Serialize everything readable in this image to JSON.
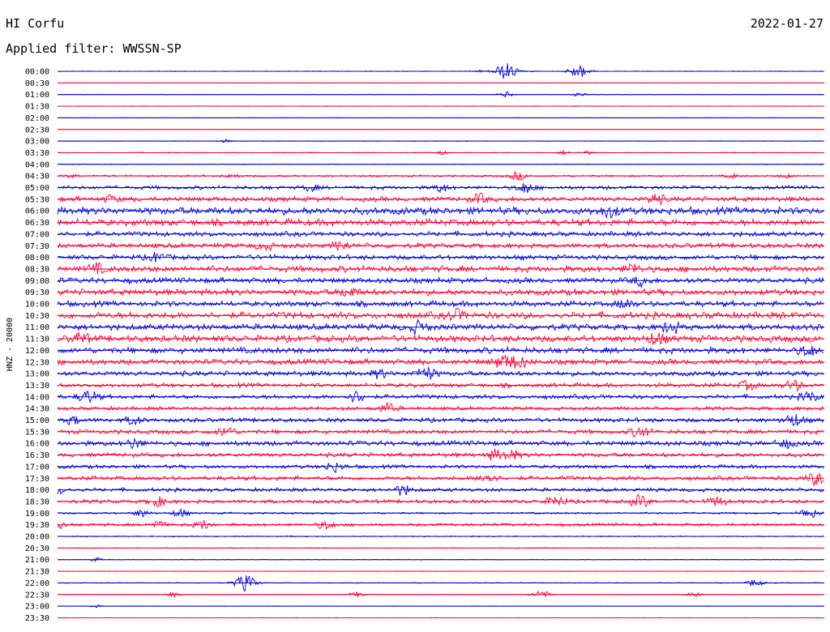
{
  "header": {
    "station": "HI Corfu",
    "date": "2022-01-27",
    "filter": "Applied filter: WWSSN-SP",
    "channel": "HNZ - 20000"
  },
  "colors": {
    "trace_a": "#0000dd",
    "trace_b": "#ff0033",
    "text": "#000000",
    "background": "#ffffff"
  },
  "chart_data": {
    "type": "line",
    "title": "HI Corfu",
    "subtitle": "Applied filter: WWSSN-SP",
    "ylabel": "HNZ - 20000",
    "xlabel": "",
    "rows": [
      {
        "label": "00:00",
        "color": "blue",
        "activity": 0.05,
        "events": [
          [
            0.55,
            0.1
          ],
          [
            0.585,
            0.8
          ],
          [
            0.68,
            0.65
          ]
        ]
      },
      {
        "label": "00:30",
        "color": "red",
        "activity": 0.02,
        "events": []
      },
      {
        "label": "01:00",
        "color": "blue",
        "activity": 0.03,
        "events": [
          [
            0.585,
            0.3
          ],
          [
            0.68,
            0.2
          ]
        ]
      },
      {
        "label": "01:30",
        "color": "red",
        "activity": 0.04,
        "events": []
      },
      {
        "label": "02:00",
        "color": "blue",
        "activity": 0.02,
        "events": []
      },
      {
        "label": "02:30",
        "color": "red",
        "activity": 0.02,
        "events": []
      },
      {
        "label": "03:00",
        "color": "blue",
        "activity": 0.05,
        "events": [
          [
            0.22,
            0.15
          ]
        ]
      },
      {
        "label": "03:30",
        "color": "red",
        "activity": 0.06,
        "events": [
          [
            0.5,
            0.2
          ],
          [
            0.66,
            0.2
          ],
          [
            0.69,
            0.2
          ]
        ]
      },
      {
        "label": "04:00",
        "color": "blue",
        "activity": 0.06,
        "events": []
      },
      {
        "label": "04:30",
        "color": "red",
        "activity": 0.15,
        "events": [
          [
            0.02,
            0.15
          ],
          [
            0.23,
            0.2
          ],
          [
            0.6,
            0.4
          ],
          [
            0.88,
            0.2
          ],
          [
            0.95,
            0.2
          ]
        ]
      },
      {
        "label": "05:00",
        "color": "blue",
        "activity": 0.3,
        "events": [
          [
            0.33,
            0.3
          ],
          [
            0.5,
            0.35
          ],
          [
            0.61,
            0.5
          ]
        ]
      },
      {
        "label": "05:30",
        "color": "red",
        "activity": 0.4,
        "events": [
          [
            0.07,
            0.3
          ],
          [
            0.55,
            0.4
          ],
          [
            0.78,
            0.45
          ]
        ]
      },
      {
        "label": "06:00",
        "color": "blue",
        "activity": 0.6,
        "events": [
          [
            0.72,
            0.5
          ]
        ]
      },
      {
        "label": "06:30",
        "color": "red",
        "activity": 0.55,
        "events": []
      },
      {
        "label": "07:00",
        "color": "blue",
        "activity": 0.4,
        "events": []
      },
      {
        "label": "07:30",
        "color": "red",
        "activity": 0.4,
        "events": [
          [
            0.37,
            0.4
          ],
          [
            0.27,
            0.35
          ]
        ]
      },
      {
        "label": "08:00",
        "color": "blue",
        "activity": 0.4,
        "events": [
          [
            0.13,
            0.4
          ]
        ]
      },
      {
        "label": "08:30",
        "color": "red",
        "activity": 0.5,
        "events": [
          [
            0.05,
            0.4
          ],
          [
            0.75,
            0.45
          ]
        ]
      },
      {
        "label": "09:00",
        "color": "blue",
        "activity": 0.45,
        "events": [
          [
            0.76,
            0.4
          ]
        ]
      },
      {
        "label": "09:30",
        "color": "red",
        "activity": 0.5,
        "events": [
          [
            0.38,
            0.45
          ]
        ]
      },
      {
        "label": "10:00",
        "color": "blue",
        "activity": 0.45,
        "events": [
          [
            0.74,
            0.4
          ]
        ]
      },
      {
        "label": "10:30",
        "color": "red",
        "activity": 0.55,
        "events": [
          [
            0.52,
            0.45
          ]
        ]
      },
      {
        "label": "11:00",
        "color": "blue",
        "activity": 0.5,
        "events": [
          [
            0.47,
            0.5
          ],
          [
            0.8,
            0.5
          ]
        ]
      },
      {
        "label": "11:30",
        "color": "red",
        "activity": 0.55,
        "events": [
          [
            0.03,
            0.45
          ],
          [
            0.78,
            0.5
          ]
        ]
      },
      {
        "label": "12:00",
        "color": "blue",
        "activity": 0.5,
        "events": [
          [
            0.98,
            0.5
          ]
        ]
      },
      {
        "label": "12:30",
        "color": "red",
        "activity": 0.45,
        "events": [
          [
            0.58,
            0.55
          ],
          [
            0.6,
            0.5
          ]
        ]
      },
      {
        "label": "13:00",
        "color": "blue",
        "activity": 0.4,
        "events": [
          [
            0.48,
            0.6
          ],
          [
            0.42,
            0.35
          ]
        ]
      },
      {
        "label": "13:30",
        "color": "red",
        "activity": 0.35,
        "events": [
          [
            0.96,
            0.45
          ],
          [
            0.9,
            0.4
          ]
        ]
      },
      {
        "label": "14:00",
        "color": "blue",
        "activity": 0.35,
        "events": [
          [
            0.04,
            0.55
          ],
          [
            0.39,
            0.5
          ],
          [
            0.98,
            0.45
          ]
        ]
      },
      {
        "label": "14:30",
        "color": "red",
        "activity": 0.3,
        "events": [
          [
            0.43,
            0.45
          ]
        ]
      },
      {
        "label": "15:00",
        "color": "blue",
        "activity": 0.35,
        "events": [
          [
            0.02,
            0.35
          ],
          [
            0.1,
            0.4
          ],
          [
            0.96,
            0.55
          ]
        ]
      },
      {
        "label": "15:30",
        "color": "red",
        "activity": 0.35,
        "events": [
          [
            0.22,
            0.45
          ],
          [
            0.76,
            0.5
          ]
        ]
      },
      {
        "label": "16:00",
        "color": "blue",
        "activity": 0.4,
        "events": [
          [
            0.1,
            0.45
          ],
          [
            0.95,
            0.4
          ]
        ]
      },
      {
        "label": "16:30",
        "color": "red",
        "activity": 0.35,
        "events": [
          [
            0.59,
            0.45
          ],
          [
            0.57,
            0.4
          ]
        ]
      },
      {
        "label": "17:00",
        "color": "blue",
        "activity": 0.3,
        "events": [
          [
            0.36,
            0.45
          ]
        ]
      },
      {
        "label": "17:30",
        "color": "red",
        "activity": 0.35,
        "events": [
          [
            0.56,
            0.5
          ],
          [
            0.99,
            0.55
          ]
        ]
      },
      {
        "label": "18:00",
        "color": "blue",
        "activity": 0.3,
        "events": [
          [
            0.0,
            0.4
          ],
          [
            0.45,
            0.45
          ]
        ]
      },
      {
        "label": "18:30",
        "color": "red",
        "activity": 0.3,
        "events": [
          [
            0.13,
            0.45
          ],
          [
            0.76,
            0.55
          ],
          [
            0.65,
            0.5
          ],
          [
            0.86,
            0.45
          ]
        ]
      },
      {
        "label": "19:00",
        "color": "blue",
        "activity": 0.15,
        "events": [
          [
            0.11,
            0.35
          ],
          [
            0.16,
            0.4
          ],
          [
            0.98,
            0.5
          ]
        ]
      },
      {
        "label": "19:30",
        "color": "red",
        "activity": 0.25,
        "events": [
          [
            0.0,
            0.4
          ],
          [
            0.13,
            0.35
          ],
          [
            0.19,
            0.4
          ],
          [
            0.35,
            0.4
          ]
        ]
      },
      {
        "label": "20:00",
        "color": "blue",
        "activity": 0.08,
        "events": []
      },
      {
        "label": "20:30",
        "color": "red",
        "activity": 0.06,
        "events": []
      },
      {
        "label": "21:00",
        "color": "blue",
        "activity": 0.05,
        "events": [
          [
            0.05,
            0.2
          ]
        ]
      },
      {
        "label": "21:30",
        "color": "red",
        "activity": 0.04,
        "events": []
      },
      {
        "label": "22:00",
        "color": "blue",
        "activity": 0.06,
        "events": [
          [
            0.24,
            0.5
          ],
          [
            0.25,
            0.45
          ],
          [
            0.91,
            0.35
          ]
        ]
      },
      {
        "label": "22:30",
        "color": "red",
        "activity": 0.05,
        "events": [
          [
            0.15,
            0.25
          ],
          [
            0.39,
            0.3
          ],
          [
            0.63,
            0.45
          ],
          [
            0.83,
            0.25
          ]
        ]
      },
      {
        "label": "23:00",
        "color": "blue",
        "activity": 0.03,
        "events": [
          [
            0.05,
            0.15
          ]
        ]
      },
      {
        "label": "23:30",
        "color": "red",
        "activity": 0.03,
        "events": []
      }
    ]
  }
}
